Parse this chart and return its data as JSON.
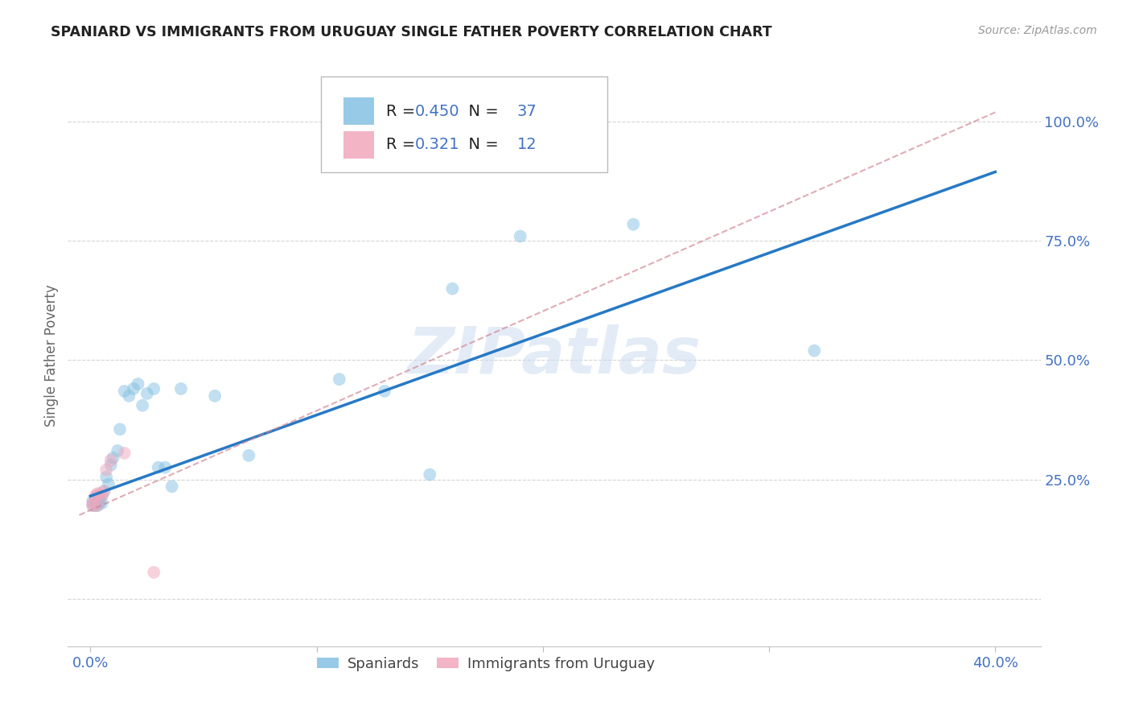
{
  "title": "SPANIARD VS IMMIGRANTS FROM URUGUAY SINGLE FATHER POVERTY CORRELATION CHART",
  "source": "Source: ZipAtlas.com",
  "ylabel": "Single Father Poverty",
  "R_blue": 0.45,
  "N_blue": 37,
  "R_pink": 0.321,
  "N_pink": 12,
  "blue_scatter_x": [
    0.001,
    0.001,
    0.002,
    0.002,
    0.003,
    0.003,
    0.004,
    0.004,
    0.005,
    0.005,
    0.006,
    0.007,
    0.008,
    0.009,
    0.01,
    0.012,
    0.013,
    0.015,
    0.017,
    0.019,
    0.021,
    0.023,
    0.025,
    0.028,
    0.03,
    0.033,
    0.036,
    0.04,
    0.055,
    0.07,
    0.11,
    0.13,
    0.15,
    0.16,
    0.19,
    0.24,
    0.32
  ],
  "blue_scatter_y": [
    0.195,
    0.205,
    0.195,
    0.205,
    0.195,
    0.215,
    0.2,
    0.21,
    0.2,
    0.215,
    0.225,
    0.255,
    0.24,
    0.28,
    0.295,
    0.31,
    0.355,
    0.435,
    0.425,
    0.44,
    0.45,
    0.405,
    0.43,
    0.44,
    0.275,
    0.275,
    0.235,
    0.44,
    0.425,
    0.3,
    0.46,
    0.435,
    0.26,
    0.65,
    0.76,
    0.785,
    0.52
  ],
  "pink_scatter_x": [
    0.001,
    0.001,
    0.002,
    0.003,
    0.003,
    0.004,
    0.005,
    0.006,
    0.007,
    0.009,
    0.015,
    0.028
  ],
  "pink_scatter_y": [
    0.195,
    0.2,
    0.215,
    0.195,
    0.22,
    0.22,
    0.215,
    0.225,
    0.27,
    0.29,
    0.305,
    0.055
  ],
  "blue_line_x": [
    0.0,
    0.4
  ],
  "blue_line_y": [
    0.215,
    0.895
  ],
  "pink_line_x": [
    -0.005,
    0.4
  ],
  "pink_line_y": [
    0.175,
    1.02
  ],
  "watermark": "ZIPatlas",
  "scatter_size": 130,
  "scatter_alpha": 0.5,
  "blue_color": "#85c1e2",
  "pink_color": "#f1a7bc",
  "line_blue_color": "#2779c4",
  "line_pink_color": "#d08090",
  "grid_color": "#d0d0d0",
  "background_color": "#ffffff",
  "tick_color_blue": "#4472c4",
  "xlim": [
    -0.01,
    0.42
  ],
  "ylim": [
    -0.1,
    1.12
  ]
}
